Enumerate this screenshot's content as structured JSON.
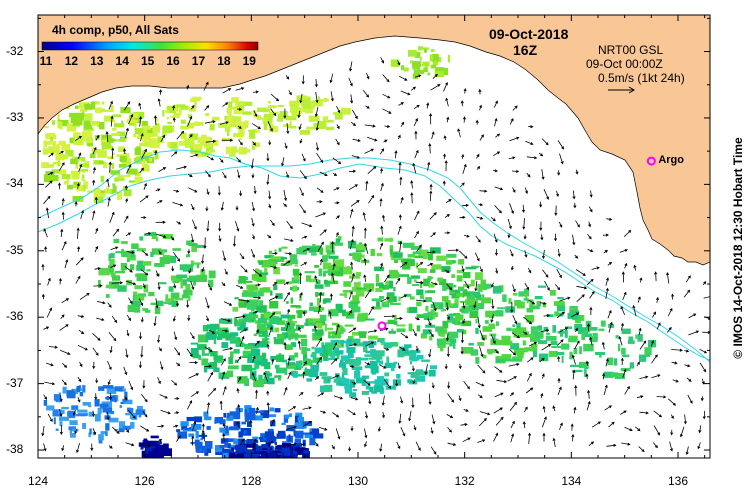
{
  "title": {
    "date": "09-Oct-2018",
    "time": "16Z"
  },
  "colorbar": {
    "label": "4h comp, p50, All Sats",
    "ticks": [
      "11",
      "12",
      "13",
      "14",
      "15",
      "16",
      "17",
      "18",
      "19"
    ],
    "range": [
      11,
      19.5
    ]
  },
  "legend": {
    "source": "NRT00 GSL",
    "datetime": "09-Oct 00:00Z",
    "scale": "0.5m/s (1kt 24h)"
  },
  "markers": {
    "argo_label": "Argo",
    "argo_lon": 135.5,
    "argo_lat": -33.65,
    "float_lon": 130.45,
    "float_lat": -36.13
  },
  "axes": {
    "lon_ticks": [
      "124",
      "126",
      "128",
      "130",
      "132",
      "134",
      "136"
    ],
    "lat_ticks": [
      "-32",
      "-33",
      "-34",
      "-35",
      "-36",
      "-37",
      "-38"
    ],
    "lon_range": [
      124,
      136.6
    ],
    "lat_range": [
      -31.45,
      -38.12
    ]
  },
  "credit": "© IMOS 14-Oct-2018 12:30 Hobart Time",
  "colors": {
    "land": "#F9C696",
    "sea": "#FFFFFF",
    "contour": "#33D6E8",
    "marker": "#FF00FF",
    "arrow": "#000000"
  }
}
